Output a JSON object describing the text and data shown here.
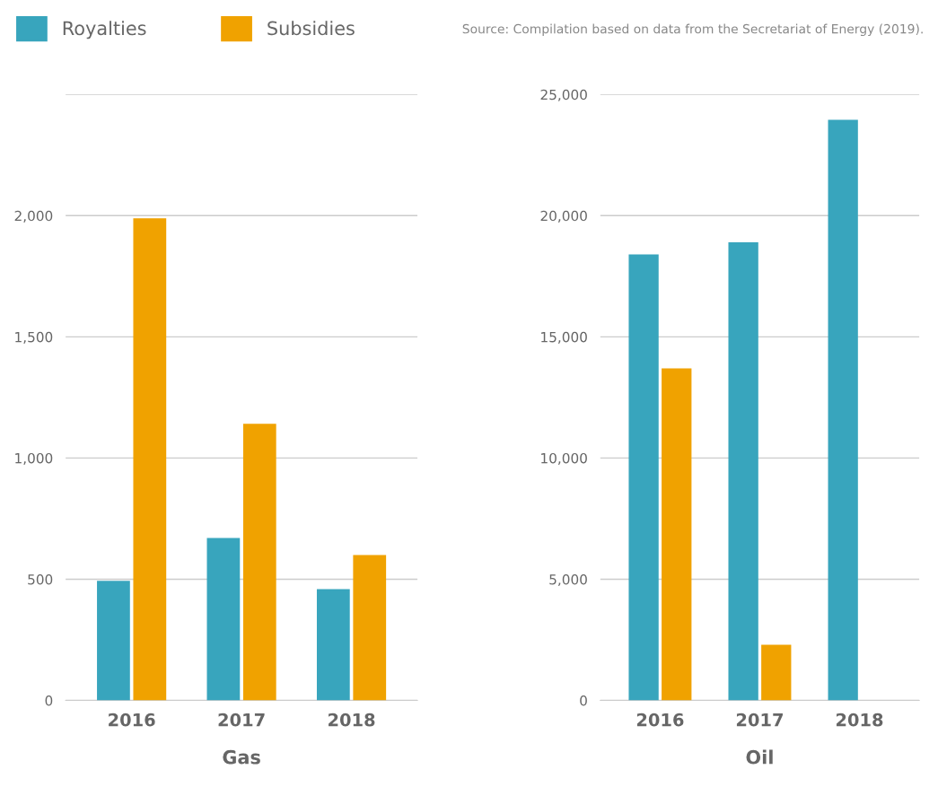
{
  "chart_data": [
    {
      "type": "bar",
      "xlabel": "Gas",
      "categories": [
        "2016",
        "2017",
        "2018"
      ],
      "legend": "top left",
      "grid": "y",
      "ylim": [
        0,
        2500
      ],
      "yticks": [
        0,
        500,
        {
          "value": 1000,
          "label": "1,000"
        },
        {
          "value": 1500,
          "label": "1,500"
        },
        {
          "value": 2000,
          "label": "2,000"
        },
        {
          "value": 2500,
          "label": null
        }
      ],
      "series": [
        {
          "name": "Royalties",
          "color": "#38a5bd",
          "values": [
            493,
            670,
            459
          ]
        },
        {
          "name": "Subsidies",
          "color": "#f0a200",
          "values": [
            1989,
            1141,
            600
          ]
        }
      ]
    },
    {
      "type": "bar",
      "xlabel": "Oil",
      "categories": [
        "2016",
        "2017",
        "2018"
      ],
      "grid": "y",
      "ylim": [
        0,
        25000
      ],
      "yticks": [
        0,
        {
          "value": 5000,
          "label": "5,000"
        },
        {
          "value": 10000,
          "label": "10,000"
        },
        {
          "value": 15000,
          "label": "15,000"
        },
        {
          "value": 20000,
          "label": "20,000"
        },
        {
          "value": 25000,
          "label": "25,000"
        }
      ],
      "annotations": [
        "Source: Compilation based on data from the Secretariat of Energy (2019)."
      ],
      "series": [
        {
          "color": "#38a5bd",
          "values": [
            18400,
            18900,
            23950
          ]
        },
        {
          "color": "#f0a200",
          "values": [
            13700,
            2300,
            null
          ]
        }
      ]
    }
  ]
}
